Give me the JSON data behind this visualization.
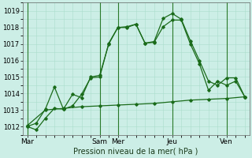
{
  "xlabel": "Pression niveau de la mer( hPa )",
  "background_color": "#cceee6",
  "grid_color": "#aaddcc",
  "line_color": "#1a6b1a",
  "ylim": [
    1011.5,
    1019.5
  ],
  "ytick_positions": [
    1012,
    1013,
    1014,
    1015,
    1016,
    1017,
    1018,
    1019
  ],
  "series1_x": [
    0,
    1,
    2,
    3,
    4,
    5,
    6,
    7,
    8,
    9,
    10,
    11,
    12,
    13,
    14,
    15,
    16,
    17,
    18,
    19,
    20,
    21,
    22,
    23,
    24
  ],
  "series1_y": [
    1012.0,
    1011.8,
    1012.5,
    1013.1,
    1013.05,
    1013.25,
    1013.95,
    1014.95,
    1015.0,
    1017.05,
    1018.0,
    1018.05,
    1018.2,
    1017.05,
    1017.15,
    1018.55,
    1018.85,
    1018.5,
    1017.2,
    1016.0,
    1014.75,
    1014.5,
    1014.95,
    1014.95,
    1013.8
  ],
  "series2_x": [
    0,
    1,
    2,
    3,
    4,
    5,
    6,
    7,
    8,
    9,
    10,
    11,
    12,
    13,
    14,
    15,
    16,
    17,
    18,
    19,
    20,
    21,
    22,
    23,
    24
  ],
  "series2_y": [
    1012.0,
    1012.2,
    1013.05,
    1014.4,
    1013.05,
    1013.95,
    1013.75,
    1015.0,
    1015.1,
    1017.0,
    1018.0,
    1018.0,
    1018.2,
    1017.05,
    1017.1,
    1018.05,
    1018.45,
    1018.45,
    1017.0,
    1015.8,
    1014.2,
    1014.75,
    1014.5,
    1014.75,
    1013.8
  ],
  "series3_x": [
    0,
    2,
    4,
    6,
    8,
    10,
    12,
    14,
    16,
    18,
    20,
    22,
    24
  ],
  "series3_y": [
    1012.05,
    1013.0,
    1013.1,
    1013.2,
    1013.25,
    1013.3,
    1013.35,
    1013.4,
    1013.5,
    1013.6,
    1013.65,
    1013.7,
    1013.8
  ],
  "vlines_x": [
    0,
    8,
    10,
    16,
    22
  ],
  "xtick_positions": [
    0,
    8,
    10,
    16,
    22
  ],
  "xtick_labels": [
    "Mar",
    "Sam",
    "Mer",
    "Jeu",
    "Ven"
  ]
}
